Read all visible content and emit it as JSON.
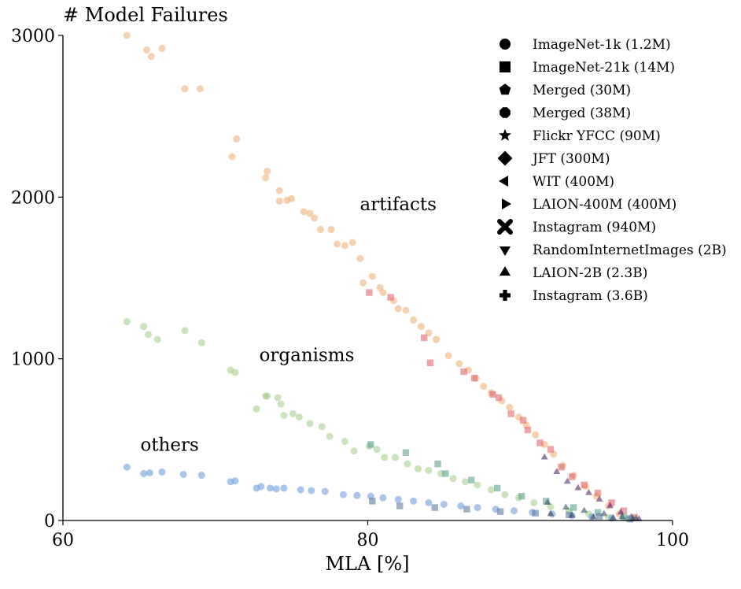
{
  "chart_data": {
    "type": "scatter",
    "title": "",
    "xlabel": "MLA [%]",
    "ylabel": "# Model Failures",
    "xlim": [
      60,
      100
    ],
    "ylim": [
      0,
      3000
    ],
    "xticks": [
      "60",
      "80",
      "100"
    ],
    "yticks": [
      "0",
      "1000",
      "2000",
      "3000"
    ],
    "grid": false,
    "legend_position": "top-right",
    "group_labels": [
      {
        "text": "artifacts",
        "x": 82.0,
        "y": 1920
      },
      {
        "text": "organisms",
        "x": 76.0,
        "y": 985
      },
      {
        "text": "others",
        "x": 67.0,
        "y": 430
      }
    ],
    "legend": [
      {
        "label": "ImageNet-1k (1.2M)",
        "marker": "circle"
      },
      {
        "label": "ImageNet-21k (14M)",
        "marker": "square"
      },
      {
        "label": "Merged (30M)",
        "marker": "pentagon"
      },
      {
        "label": "Merged (38M)",
        "marker": "octagon"
      },
      {
        "label": "Flickr YFCC (90M)",
        "marker": "star"
      },
      {
        "label": "JFT (300M)",
        "marker": "diamond"
      },
      {
        "label": "WIT (400M)",
        "marker": "triangle-left"
      },
      {
        "label": "LAION-400M (400M)",
        "marker": "triangle-right"
      },
      {
        "label": "Instagram (940M)",
        "marker": "x-filled"
      },
      {
        "label": "RandomInternetImages (2B)",
        "marker": "triangle-down"
      },
      {
        "label": "LAION-2B (2.3B)",
        "marker": "triangle-up"
      },
      {
        "label": "Instagram (3.6B)",
        "marker": "plus-filled"
      }
    ],
    "series": [
      {
        "category": "artifacts",
        "marker": "circle",
        "color": "#f0b27a",
        "points": [
          [
            64.2,
            3000
          ],
          [
            65.5,
            2910
          ],
          [
            65.8,
            2870
          ],
          [
            66.5,
            2920
          ],
          [
            68,
            2670
          ],
          [
            69,
            2670
          ],
          [
            71.1,
            2250
          ],
          [
            71.4,
            2360
          ],
          [
            73.3,
            2120
          ],
          [
            73.4,
            2160
          ],
          [
            74.2,
            2040
          ],
          [
            74.2,
            1975
          ],
          [
            74.7,
            1980
          ],
          [
            75,
            1990
          ],
          [
            75.8,
            1910
          ],
          [
            76.2,
            1900
          ],
          [
            76.5,
            1870
          ],
          [
            76.9,
            1800
          ],
          [
            77.6,
            1800
          ],
          [
            78,
            1710
          ],
          [
            78.5,
            1700
          ],
          [
            79,
            1720
          ],
          [
            79.5,
            1620
          ],
          [
            79.7,
            1470
          ],
          [
            80.3,
            1510
          ],
          [
            80.8,
            1440
          ],
          [
            81,
            1410
          ],
          [
            81.7,
            1360
          ],
          [
            82,
            1310
          ],
          [
            82.5,
            1300
          ],
          [
            83,
            1240
          ],
          [
            83.5,
            1200
          ],
          [
            84,
            1160
          ],
          [
            84.5,
            1120
          ],
          [
            85.3,
            1020
          ],
          [
            86,
            970
          ],
          [
            86.6,
            930
          ],
          [
            87.1,
            880
          ],
          [
            87.6,
            830
          ],
          [
            88.1,
            790
          ],
          [
            88.8,
            740
          ],
          [
            89.3,
            700
          ],
          [
            89.9,
            640
          ],
          [
            90.4,
            590
          ],
          [
            91,
            530
          ],
          [
            91.6,
            470
          ],
          [
            92.2,
            410
          ],
          [
            92.8,
            340
          ],
          [
            93.5,
            280
          ],
          [
            94.3,
            210
          ],
          [
            95,
            150
          ],
          [
            95.8,
            90
          ],
          [
            96.5,
            40
          ],
          [
            97.2,
            12
          ]
        ]
      },
      {
        "category": "artifacts",
        "marker": "square",
        "color": "#e0676a",
        "points": [
          [
            80.1,
            1410
          ],
          [
            81.5,
            1380
          ],
          [
            83.7,
            1130
          ],
          [
            84.1,
            975
          ],
          [
            86.3,
            920
          ],
          [
            87,
            880
          ],
          [
            88.2,
            780
          ],
          [
            88.6,
            760
          ],
          [
            89.4,
            660
          ],
          [
            90.2,
            620
          ],
          [
            90.5,
            560
          ],
          [
            91.3,
            480
          ],
          [
            92,
            440
          ],
          [
            92.7,
            330
          ],
          [
            93.4,
            270
          ],
          [
            94.2,
            220
          ],
          [
            95.1,
            170
          ],
          [
            96,
            110
          ],
          [
            96.8,
            60
          ],
          [
            97.5,
            20
          ]
        ]
      },
      {
        "category": "artifacts",
        "marker": "triangle-up",
        "color": "#55286a",
        "points": [
          [
            91.6,
            390
          ],
          [
            92.4,
            300
          ],
          [
            93.1,
            240
          ],
          [
            93.8,
            200
          ],
          [
            94.5,
            170
          ],
          [
            95.2,
            130
          ],
          [
            95.9,
            90
          ],
          [
            96.6,
            50
          ],
          [
            97.3,
            20
          ],
          [
            97.8,
            8
          ]
        ]
      },
      {
        "category": "organisms",
        "marker": "circle",
        "color": "#a8d18e",
        "points": [
          [
            64.2,
            1230
          ],
          [
            65.3,
            1200
          ],
          [
            65.6,
            1150
          ],
          [
            66.2,
            1120
          ],
          [
            68,
            1175
          ],
          [
            69.1,
            1100
          ],
          [
            71,
            930
          ],
          [
            71.3,
            915
          ],
          [
            72.7,
            690
          ],
          [
            73.3,
            770
          ],
          [
            73.4,
            770
          ],
          [
            74.1,
            760
          ],
          [
            74.3,
            720
          ],
          [
            74.5,
            650
          ],
          [
            75.1,
            660
          ],
          [
            75.5,
            640
          ],
          [
            76.2,
            600
          ],
          [
            77,
            580
          ],
          [
            77.5,
            520
          ],
          [
            78.5,
            490
          ],
          [
            79.1,
            430
          ],
          [
            80.1,
            460
          ],
          [
            80.6,
            440
          ],
          [
            81.1,
            390
          ],
          [
            81.8,
            390
          ],
          [
            82.6,
            350
          ],
          [
            83.3,
            320
          ],
          [
            84,
            310
          ],
          [
            84.8,
            290
          ],
          [
            85.6,
            260
          ],
          [
            86.4,
            240
          ],
          [
            87.2,
            220
          ],
          [
            88.1,
            190
          ],
          [
            89,
            160
          ],
          [
            89.9,
            140
          ],
          [
            90.9,
            110
          ],
          [
            92,
            85
          ],
          [
            93.2,
            60
          ],
          [
            94.5,
            40
          ],
          [
            95.8,
            20
          ],
          [
            97.1,
            8
          ]
        ]
      },
      {
        "category": "organisms",
        "marker": "square",
        "color": "#5fa48e",
        "points": [
          [
            80.2,
            470
          ],
          [
            82.5,
            420
          ],
          [
            84.6,
            350
          ],
          [
            85.1,
            290
          ],
          [
            86.8,
            250
          ],
          [
            88.5,
            200
          ],
          [
            90.1,
            150
          ],
          [
            91.7,
            120
          ],
          [
            93.5,
            80
          ],
          [
            95.1,
            50
          ],
          [
            96.8,
            18
          ]
        ]
      },
      {
        "category": "organisms",
        "marker": "triangle-up",
        "color": "#2f5060",
        "points": [
          [
            91.8,
            110
          ],
          [
            93,
            80
          ],
          [
            94.2,
            60
          ],
          [
            95.5,
            40
          ],
          [
            96.7,
            22
          ],
          [
            97.6,
            10
          ]
        ]
      },
      {
        "category": "others",
        "marker": "circle",
        "color": "#6f9fe0",
        "points": [
          [
            64.2,
            330
          ],
          [
            65.3,
            290
          ],
          [
            65.7,
            295
          ],
          [
            66.5,
            300
          ],
          [
            67.9,
            285
          ],
          [
            69.1,
            280
          ],
          [
            71,
            240
          ],
          [
            71.3,
            245
          ],
          [
            72.7,
            200
          ],
          [
            73,
            210
          ],
          [
            73.6,
            200
          ],
          [
            74,
            195
          ],
          [
            74.5,
            200
          ],
          [
            75.6,
            190
          ],
          [
            76.3,
            185
          ],
          [
            77.2,
            180
          ],
          [
            78.4,
            160
          ],
          [
            79.3,
            155
          ],
          [
            80.2,
            150
          ],
          [
            81,
            140
          ],
          [
            82,
            130
          ],
          [
            83,
            120
          ],
          [
            84,
            110
          ],
          [
            85,
            100
          ],
          [
            86.1,
            90
          ],
          [
            87.2,
            80
          ],
          [
            88.4,
            70
          ],
          [
            89.6,
            60
          ],
          [
            90.8,
            50
          ],
          [
            92.1,
            40
          ],
          [
            93.4,
            30
          ],
          [
            94.7,
            22
          ],
          [
            96,
            15
          ],
          [
            97.3,
            8
          ]
        ]
      },
      {
        "category": "others",
        "marker": "square",
        "color": "#5f7a9e",
        "points": [
          [
            80.3,
            120
          ],
          [
            82.1,
            90
          ],
          [
            84.4,
            80
          ],
          [
            86.5,
            70
          ],
          [
            88.7,
            55
          ],
          [
            91,
            45
          ],
          [
            93.2,
            35
          ],
          [
            95.2,
            25
          ],
          [
            97.2,
            12
          ]
        ]
      },
      {
        "category": "others",
        "marker": "triangle-up",
        "color": "#2d3d55",
        "points": [
          [
            92,
            40
          ],
          [
            93.4,
            30
          ],
          [
            94.8,
            20
          ],
          [
            96.1,
            15
          ],
          [
            97.4,
            8
          ]
        ]
      }
    ]
  }
}
